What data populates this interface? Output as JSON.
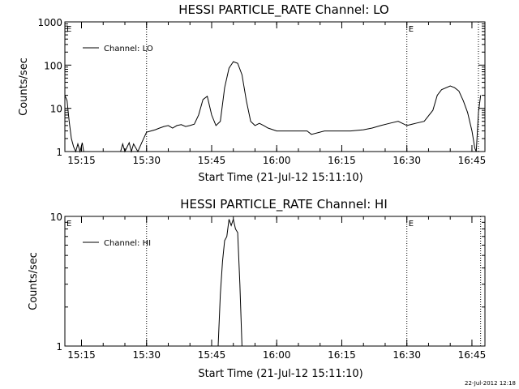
{
  "footer_date": "22-Jul-2012 12:18",
  "chart_data": [
    {
      "type": "line",
      "title": "HESSI PARTICLE_RATE Channel: LO",
      "xlabel": "Start Time (21-Jul-12 15:11:10)",
      "ylabel": "Counts/sec",
      "yscale": "log",
      "ylim": [
        1,
        1000
      ],
      "xlim": [
        "15:11:10",
        "16:48:00"
      ],
      "x_ticks": [
        "15:15",
        "15:30",
        "15:45",
        "16:00",
        "16:15",
        "16:30",
        "16:45"
      ],
      "y_ticks": [
        "1",
        "10",
        "100",
        "1000"
      ],
      "legend": "top-left",
      "markers": [
        {
          "time": "15:11:10",
          "label": "E"
        },
        {
          "time": "15:30:00",
          "label": ""
        },
        {
          "time": "16:30:00",
          "label": "E"
        },
        {
          "time": "16:46:30",
          "label": ""
        }
      ],
      "series": [
        {
          "name": "Channel: LO",
          "x": [
            "15:11:10",
            "15:11:40",
            "15:12:10",
            "15:12:40",
            "15:13:10",
            "15:13:40",
            "15:14:10",
            "15:14:40",
            "15:15:10",
            "15:15:30",
            "15:24:00",
            "15:24:30",
            "15:25:00",
            "15:26:00",
            "15:26:30",
            "15:27:00",
            "15:28:00",
            "15:29:00",
            "15:30:00",
            "15:31:00",
            "15:32:00",
            "15:33:00",
            "15:34:00",
            "15:35:00",
            "15:36:00",
            "15:37:00",
            "15:38:00",
            "15:39:00",
            "15:40:00",
            "15:41:00",
            "15:42:00",
            "15:43:00",
            "15:44:00",
            "15:45:00",
            "15:46:00",
            "15:47:00",
            "15:48:00",
            "15:49:00",
            "15:50:00",
            "15:51:00",
            "15:52:00",
            "15:53:00",
            "15:54:00",
            "15:55:00",
            "15:56:00",
            "15:57:00",
            "15:58:00",
            "16:00:00",
            "16:03:00",
            "16:06:00",
            "16:07:00",
            "16:08:00",
            "16:11:00",
            "16:14:00",
            "16:17:00",
            "16:20:00",
            "16:22:00",
            "16:24:00",
            "16:26:00",
            "16:28:00",
            "16:30:00",
            "16:32:00",
            "16:34:00",
            "16:36:00",
            "16:37:00",
            "16:38:00",
            "16:40:00",
            "16:41:00",
            "16:42:00",
            "16:43:00",
            "16:44:00",
            "16:45:00",
            "16:45:40",
            "16:46:00",
            "16:46:30",
            "16:47:00"
          ],
          "y": [
            20,
            15,
            5,
            2,
            1.3,
            1,
            1.5,
            1,
            1.6,
            1,
            1,
            1.5,
            1,
            1.6,
            1,
            1.5,
            1,
            1.7,
            2.8,
            3,
            3.2,
            3.5,
            3.8,
            4,
            3.5,
            4,
            4.2,
            3.8,
            4,
            4.3,
            7,
            16,
            19,
            7,
            4,
            5,
            30,
            85,
            120,
            110,
            60,
            15,
            5,
            4,
            4.5,
            4,
            3.5,
            3,
            3,
            3,
            3,
            2.5,
            3,
            3,
            3,
            3.2,
            3.5,
            4,
            4.5,
            5,
            4,
            4.5,
            5,
            9,
            20,
            27,
            33,
            30,
            25,
            15,
            8,
            3,
            1.2,
            1,
            8,
            20
          ],
          "color": "#000000"
        }
      ]
    },
    {
      "type": "line",
      "title": "HESSI PARTICLE_RATE Channel: HI",
      "xlabel": "Start Time (21-Jul-12 15:11:10)",
      "ylabel": "Counts/sec",
      "yscale": "log",
      "ylim": [
        1,
        10
      ],
      "xlim": [
        "15:11:10",
        "16:48:00"
      ],
      "x_ticks": [
        "15:15",
        "15:30",
        "15:45",
        "16:00",
        "16:15",
        "16:30",
        "16:45"
      ],
      "y_ticks": [
        "1",
        "10"
      ],
      "legend": "top-left",
      "markers": [
        {
          "time": "15:11:10",
          "label": "E"
        },
        {
          "time": "15:30:00",
          "label": ""
        },
        {
          "time": "16:30:00",
          "label": "E"
        },
        {
          "time": "16:47:00",
          "label": ""
        }
      ],
      "series": [
        {
          "name": "Channel: HI",
          "x": [
            "15:46:30",
            "15:47:00",
            "15:47:30",
            "15:48:00",
            "15:48:30",
            "15:49:00",
            "15:49:30",
            "15:50:00",
            "15:50:30",
            "15:51:00",
            "15:51:30",
            "15:52:00"
          ],
          "y": [
            1,
            2.5,
            4.5,
            6.5,
            7,
            9.5,
            8.5,
            9.5,
            8,
            7.5,
            3,
            1
          ],
          "color": "#000000"
        }
      ]
    }
  ]
}
